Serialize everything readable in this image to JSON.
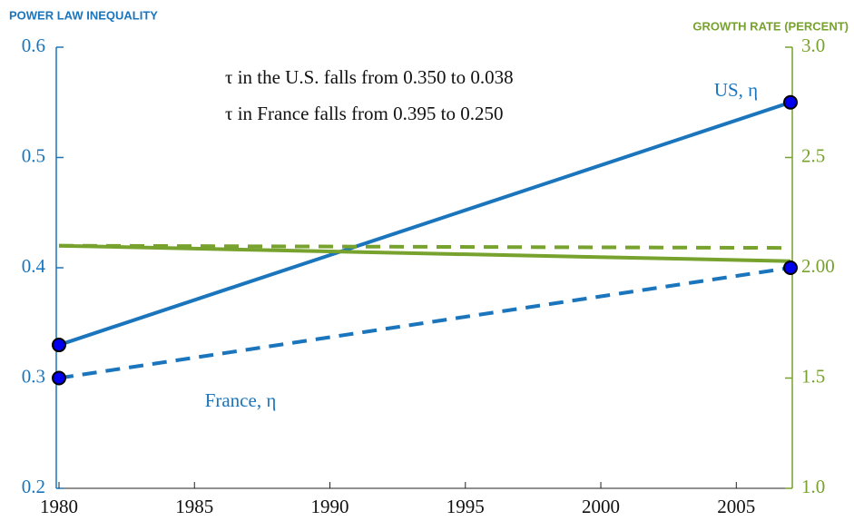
{
  "chart_data": {
    "type": "line",
    "ylabel": "POWER LAW INEQUALITY",
    "y2label": "GROWTH RATE (PERCENT)",
    "annotations": [
      "τ in the U.S. falls from 0.350 to 0.038",
      "τ in France falls from 0.395 to 0.250"
    ],
    "x": [
      1980,
      2007
    ],
    "xlim": [
      1980,
      2007
    ],
    "xticks": [
      1980,
      1985,
      1990,
      1995,
      2000,
      2005
    ],
    "ylim": [
      0.2,
      0.6
    ],
    "yticks": [
      0.2,
      0.3,
      0.4,
      0.5,
      0.6
    ],
    "y2lim": [
      1.0,
      3.0
    ],
    "y2ticks": [
      {
        "value": 1.0,
        "label": "1.0"
      },
      {
        "value": 1.5,
        "label": "1.5"
      },
      {
        "value": 2.0,
        "label": "2.00"
      },
      {
        "value": 2.5,
        "label": "2.5"
      },
      {
        "value": 3.0,
        "label": "3.0"
      }
    ],
    "left_axis_color": "#1a75bc",
    "right_axis_color": "#77a22d",
    "marker_color": "#0000ee",
    "grid": false,
    "series": [
      {
        "name": "US, η",
        "color": "#1a75bc",
        "dashed": false,
        "markers": true,
        "values": [
          0.33,
          0.55
        ]
      },
      {
        "name": "France, η",
        "color": "#1a75bc",
        "dashed": true,
        "markers": true,
        "values": [
          0.3,
          0.4
        ]
      },
      {
        "color": "#77a22d",
        "dashed": false,
        "markers": false,
        "axis": "y2",
        "values": [
          2.1,
          2.03
        ]
      },
      {
        "color": "#77a22d",
        "dashed": true,
        "markers": false,
        "axis": "y2",
        "values": [
          2.1,
          2.09
        ]
      }
    ]
  }
}
